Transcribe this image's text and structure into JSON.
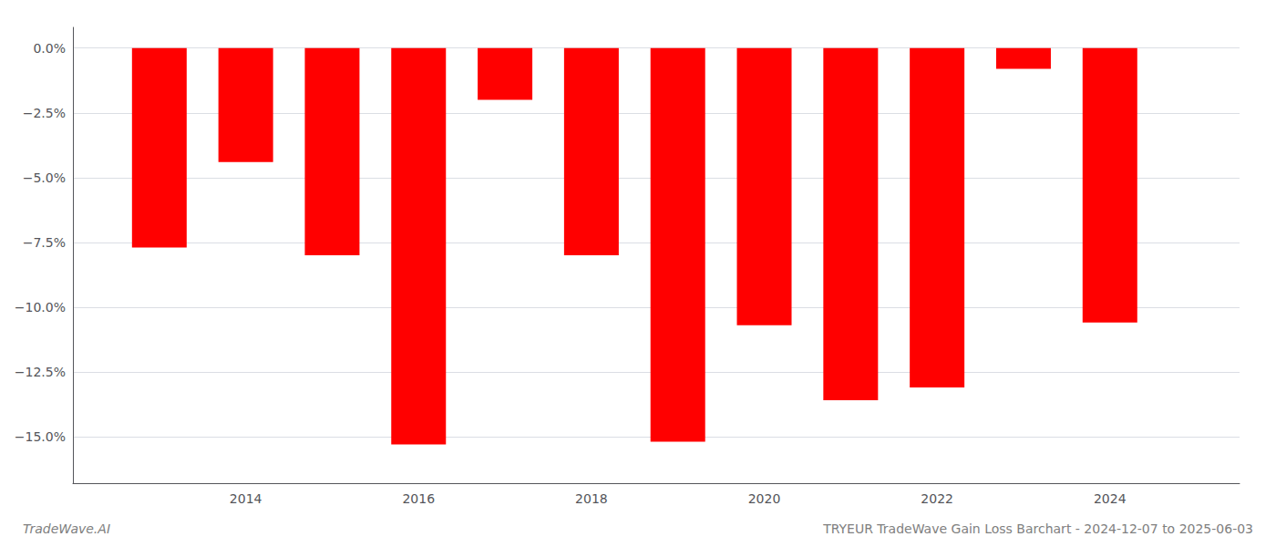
{
  "chart_data": {
    "type": "bar",
    "title": "TRYEUR TradeWave Gain Loss Barchart - 2024-12-07 to 2025-06-03",
    "annotations": [
      "TradeWave.AI"
    ],
    "x": [
      2013,
      2014,
      2015,
      2016,
      2017,
      2018,
      2019,
      2020,
      2021,
      2022,
      2023,
      2024
    ],
    "values": [
      -0.077,
      -0.044,
      -0.08,
      -0.153,
      -0.02,
      -0.08,
      -0.152,
      -0.107,
      -0.136,
      -0.131,
      -0.008,
      -0.106
    ],
    "color": "#ff0000",
    "xlim": [
      2012.0,
      2025.5
    ],
    "xticks": [
      2014,
      2016,
      2018,
      2020,
      2022,
      2024
    ],
    "ylim": [
      -0.168,
      0.008
    ],
    "yticks": [
      {
        "value": 0.0,
        "label": "0.0%"
      },
      {
        "value": -0.025,
        "label": "−2.5%"
      },
      {
        "value": -0.05,
        "label": "−5.0%"
      },
      {
        "value": -0.075,
        "label": "−7.5%"
      },
      {
        "value": -0.1,
        "label": "−10.0%"
      },
      {
        "value": -0.125,
        "label": "−12.5%"
      },
      {
        "value": -0.15,
        "label": "−15.0%"
      }
    ],
    "grid": true
  }
}
